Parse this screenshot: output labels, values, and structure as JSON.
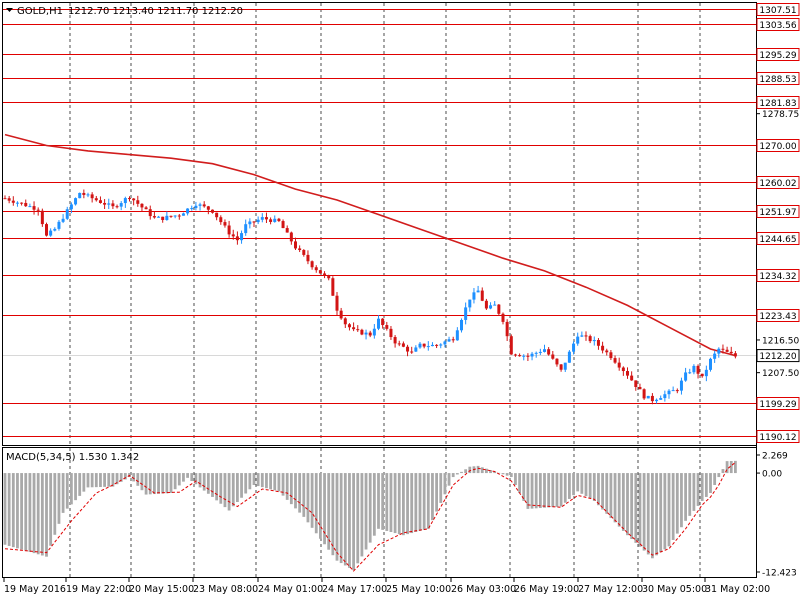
{
  "header": {
    "symbol": "GOLD,H1",
    "ohlc": "1212.70 1213.40 1211.70 1212.20"
  },
  "chart_data": [
    {
      "type": "candlestick",
      "title": "GOLD,H1",
      "ylim": [
        1187.6,
        1309.2
      ],
      "price_ticks": [
        "1278.75",
        "1216.50",
        "1207.50"
      ],
      "current_price": "1212.20",
      "horizontal_levels": [
        "1307.51",
        "1303.56",
        "1295.29",
        "1288.53",
        "1281.83",
        "1270.00",
        "1260.02",
        "1251.97",
        "1244.65",
        "1234.32",
        "1223.43",
        "1199.29",
        "1190.12"
      ],
      "x_labels": [
        "19 May 2016",
        "19 May 22:00",
        "20 May 15:00",
        "23 May 08:00",
        "24 May 01:00",
        "24 May 17:00",
        "25 May 10:00",
        "26 May 03:00",
        "26 May 19:00",
        "27 May 12:00",
        "30 May 05:00",
        "31 May 02:00"
      ],
      "close_path": [
        [
          0,
          1255.5
        ],
        [
          4,
          1254
        ],
        [
          8,
          1252.5
        ],
        [
          10,
          1245
        ],
        [
          12,
          1247
        ],
        [
          15,
          1252
        ],
        [
          18,
          1257
        ],
        [
          22,
          1255
        ],
        [
          26,
          1253
        ],
        [
          30,
          1256
        ],
        [
          34,
          1252
        ],
        [
          36,
          1250
        ],
        [
          38,
          1250
        ],
        [
          42,
          1251
        ],
        [
          46,
          1254
        ],
        [
          50,
          1252
        ],
        [
          54,
          1246
        ],
        [
          56,
          1244
        ],
        [
          58,
          1248
        ],
        [
          62,
          1250
        ],
        [
          66,
          1249
        ],
        [
          70,
          1242
        ],
        [
          74,
          1237
        ],
        [
          78,
          1233
        ],
        [
          80,
          1225
        ],
        [
          82,
          1221
        ],
        [
          84,
          1219
        ],
        [
          88,
          1218
        ],
        [
          90,
          1222
        ],
        [
          94,
          1216
        ],
        [
          98,
          1213
        ],
        [
          100,
          1215
        ],
        [
          104,
          1215
        ],
        [
          108,
          1217
        ],
        [
          112,
          1228
        ],
        [
          114,
          1230
        ],
        [
          116,
          1225
        ],
        [
          118,
          1226
        ],
        [
          120,
          1222
        ],
        [
          122,
          1213
        ],
        [
          126,
          1212
        ],
        [
          130,
          1214
        ],
        [
          134,
          1208
        ],
        [
          138,
          1218
        ],
        [
          142,
          1216
        ],
        [
          146,
          1212
        ],
        [
          150,
          1207
        ],
        [
          154,
          1201
        ],
        [
          156,
          1200
        ],
        [
          158,
          1201
        ],
        [
          162,
          1203
        ],
        [
          164,
          1207
        ],
        [
          166,
          1209
        ],
        [
          168,
          1206
        ],
        [
          170,
          1211
        ],
        [
          172,
          1214
        ],
        [
          174,
          1213
        ],
        [
          176,
          1212
        ]
      ],
      "ma_path": [
        [
          0,
          1273
        ],
        [
          10,
          1270
        ],
        [
          20,
          1268.5
        ],
        [
          30,
          1267.5
        ],
        [
          40,
          1266.5
        ],
        [
          50,
          1265
        ],
        [
          60,
          1262
        ],
        [
          70,
          1258
        ],
        [
          80,
          1255
        ],
        [
          90,
          1251
        ],
        [
          100,
          1247
        ],
        [
          110,
          1243
        ],
        [
          120,
          1239
        ],
        [
          130,
          1235.5
        ],
        [
          140,
          1231
        ],
        [
          150,
          1226
        ],
        [
          160,
          1220
        ],
        [
          170,
          1214
        ],
        [
          176,
          1212.2
        ]
      ],
      "macd": {
        "label": "MACD(5,34,5) 1.530 1.342",
        "ylim": [
          -12.423,
          2.269
        ],
        "tick_labels": [
          "2.269",
          "0.00",
          "-12.423"
        ],
        "histogram_path": [
          [
            0,
            -9
          ],
          [
            10,
            -10.5
          ],
          [
            14,
            -5
          ],
          [
            20,
            -1.8
          ],
          [
            26,
            -1.7
          ],
          [
            30,
            -0.5
          ],
          [
            34,
            -2.7
          ],
          [
            40,
            -2.5
          ],
          [
            44,
            -0.6
          ],
          [
            50,
            -3
          ],
          [
            54,
            -4.7
          ],
          [
            60,
            -1.5
          ],
          [
            66,
            -2.3
          ],
          [
            72,
            -5.5
          ],
          [
            80,
            -11
          ],
          [
            84,
            -12.2
          ],
          [
            90,
            -7
          ],
          [
            96,
            -7.8
          ],
          [
            102,
            -7
          ],
          [
            108,
            -0.5
          ],
          [
            112,
            0.8
          ],
          [
            114,
            0.9
          ],
          [
            118,
            0.2
          ],
          [
            122,
            -0.5
          ],
          [
            126,
            -4.5
          ],
          [
            134,
            -4.2
          ],
          [
            138,
            -2.3
          ],
          [
            142,
            -3.5
          ],
          [
            150,
            -7.8
          ],
          [
            156,
            -10.7
          ],
          [
            160,
            -9.2
          ],
          [
            164,
            -6
          ],
          [
            168,
            -3.5
          ],
          [
            170,
            -2.5
          ],
          [
            172,
            -0.5
          ],
          [
            174,
            1.5
          ],
          [
            176,
            1.53
          ]
        ],
        "signal_path": [
          [
            0,
            -9.5
          ],
          [
            10,
            -10
          ],
          [
            16,
            -6
          ],
          [
            22,
            -2.5
          ],
          [
            26,
            -1.5
          ],
          [
            30,
            -0.3
          ],
          [
            36,
            -2.5
          ],
          [
            42,
            -2.4
          ],
          [
            46,
            -1
          ],
          [
            52,
            -3
          ],
          [
            56,
            -4.2
          ],
          [
            62,
            -2
          ],
          [
            68,
            -2.5
          ],
          [
            74,
            -5
          ],
          [
            80,
            -10
          ],
          [
            84,
            -12.3
          ],
          [
            90,
            -9
          ],
          [
            96,
            -7.5
          ],
          [
            102,
            -7
          ],
          [
            108,
            -1.5
          ],
          [
            112,
            0.3
          ],
          [
            114,
            0.6
          ],
          [
            118,
            0.2
          ],
          [
            122,
            -1
          ],
          [
            126,
            -4
          ],
          [
            134,
            -4.3
          ],
          [
            138,
            -2.8
          ],
          [
            142,
            -3.3
          ],
          [
            150,
            -7.5
          ],
          [
            156,
            -10.3
          ],
          [
            160,
            -9.5
          ],
          [
            164,
            -7
          ],
          [
            168,
            -4
          ],
          [
            170,
            -3
          ],
          [
            172,
            -1.5
          ],
          [
            174,
            0.5
          ],
          [
            176,
            1.342
          ]
        ]
      }
    }
  ],
  "colors": {
    "bull": "#1e90ff",
    "bear": "#d21414",
    "level": "#e00000",
    "ma": "#d11d1d",
    "hist": "#a9a9a9",
    "signal": "#e00000",
    "grid": "#000000",
    "text": "#000000"
  }
}
